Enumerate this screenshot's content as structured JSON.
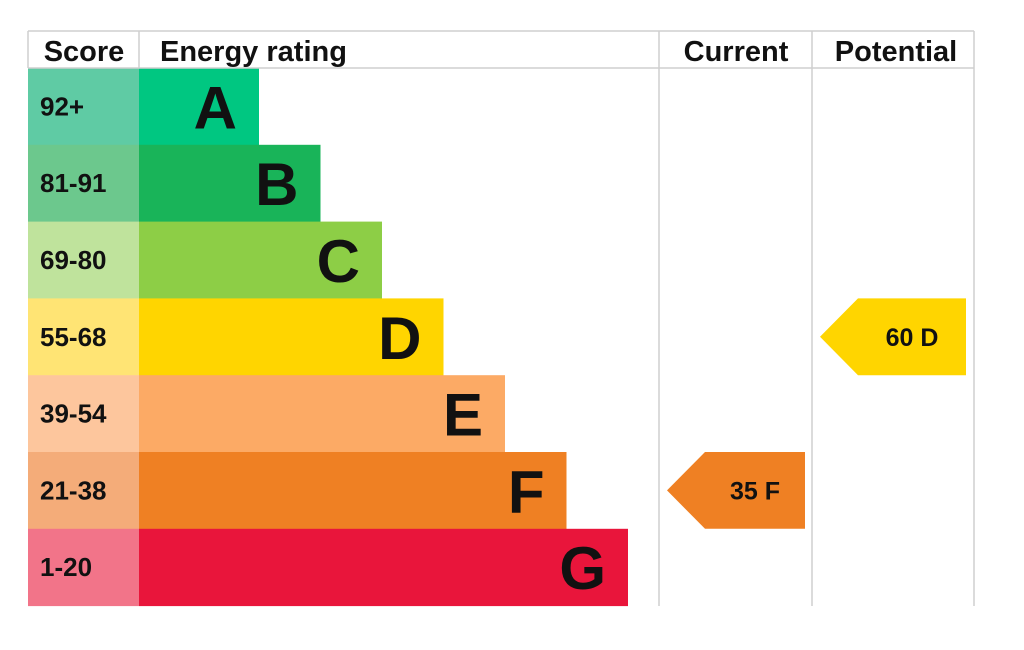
{
  "chart_data": {
    "type": "bar",
    "headers": {
      "score": "Score",
      "rating": "Energy rating",
      "current": "Current",
      "potential": "Potential"
    },
    "bands": [
      {
        "letter": "A",
        "range": "92+",
        "color": "#00c781",
        "score_bg": "#5fcba4"
      },
      {
        "letter": "B",
        "range": "81-91",
        "color": "#19b459",
        "score_bg": "#6cc88d"
      },
      {
        "letter": "C",
        "range": "69-80",
        "color": "#8dce46",
        "score_bg": "#bfe39c"
      },
      {
        "letter": "D",
        "range": "55-68",
        "color": "#ffd500",
        "score_bg": "#ffe474"
      },
      {
        "letter": "E",
        "range": "39-54",
        "color": "#fcaa65",
        "score_bg": "#fdc69d"
      },
      {
        "letter": "F",
        "range": "21-38",
        "color": "#ef8023",
        "score_bg": "#f4ac79"
      },
      {
        "letter": "G",
        "range": "1-20",
        "color": "#e9153b",
        "score_bg": "#f27489"
      }
    ],
    "current": {
      "value": 35,
      "band": "F",
      "label": "35  F",
      "color": "#ef8023"
    },
    "potential": {
      "value": 60,
      "band": "D",
      "label": "60  D",
      "color": "#ffd500"
    },
    "grid_color": "#cfcfcf"
  }
}
